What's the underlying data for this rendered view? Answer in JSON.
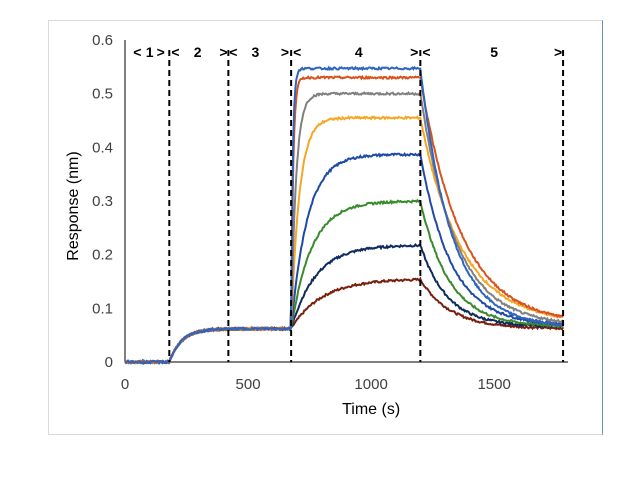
{
  "chart_data": {
    "type": "line",
    "title": "",
    "xlabel": "Time (s)",
    "ylabel": "Response (nm)",
    "xlim": [
      0,
      1800
    ],
    "ylim": [
      0,
      0.6
    ],
    "x_ticks": [
      "0",
      "500",
      "1000",
      "1500"
    ],
    "x_tick_values": [
      0,
      500,
      1000,
      1500
    ],
    "y_ticks": [
      "0",
      "0.1",
      "0.2",
      "0.3",
      "0.4",
      "0.5",
      "0.6"
    ],
    "y_tick_values": [
      0,
      0.1,
      0.2,
      0.3,
      0.4,
      0.5,
      0.6
    ],
    "grid": false,
    "legend": "none",
    "phase_boundaries": [
      180,
      420,
      675,
      1200,
      1780
    ],
    "phase_markers": [
      {
        "text": "<",
        "x": 50
      },
      {
        "text": "1",
        "x": 100
      },
      {
        "text": ">",
        "x": 145
      },
      {
        "text": "<",
        "x": 205
      },
      {
        "text": "2",
        "x": 295
      },
      {
        "text": ">",
        "x": 400
      },
      {
        "text": "<",
        "x": 440
      },
      {
        "text": "3",
        "x": 530
      },
      {
        "text": ">",
        "x": 650
      },
      {
        "text": "<",
        "x": 700
      },
      {
        "text": "4",
        "x": 950
      },
      {
        "text": ">",
        "x": 1175
      },
      {
        "text": "<",
        "x": 1225
      },
      {
        "text": "5",
        "x": 1500
      },
      {
        "text": ">",
        "x": 1760
      }
    ],
    "series": [
      {
        "color": "#2f64c0",
        "plateau": 0.547,
        "k_on": 0.15,
        "k_off": 0.008,
        "final": 0.065
      },
      {
        "color": "#d9531e",
        "plateau": 0.53,
        "k_on": 0.12,
        "k_off": 0.006,
        "final": 0.07
      },
      {
        "color": "#808080",
        "plateau": 0.5,
        "k_on": 0.05,
        "k_off": 0.007,
        "final": 0.068
      },
      {
        "color": "#f5a623",
        "plateau": 0.455,
        "k_on": 0.03,
        "k_off": 0.006,
        "final": 0.072
      },
      {
        "color": "#1f4aa8",
        "plateau": 0.387,
        "k_on": 0.015,
        "k_off": 0.008,
        "final": 0.068
      },
      {
        "color": "#3a8a2e",
        "plateau": 0.3,
        "k_on": 0.012,
        "k_off": 0.0085,
        "final": 0.066
      },
      {
        "color": "#0f2a5e",
        "plateau": 0.218,
        "k_on": 0.01,
        "k_off": 0.009,
        "final": 0.066
      },
      {
        "color": "#7a1e0e",
        "plateau": 0.155,
        "k_on": 0.008,
        "k_off": 0.008,
        "final": 0.062
      }
    ],
    "baseline": {
      "pre": 0.0,
      "loading_plateau": 0.062,
      "loading_rate": 0.02
    }
  }
}
